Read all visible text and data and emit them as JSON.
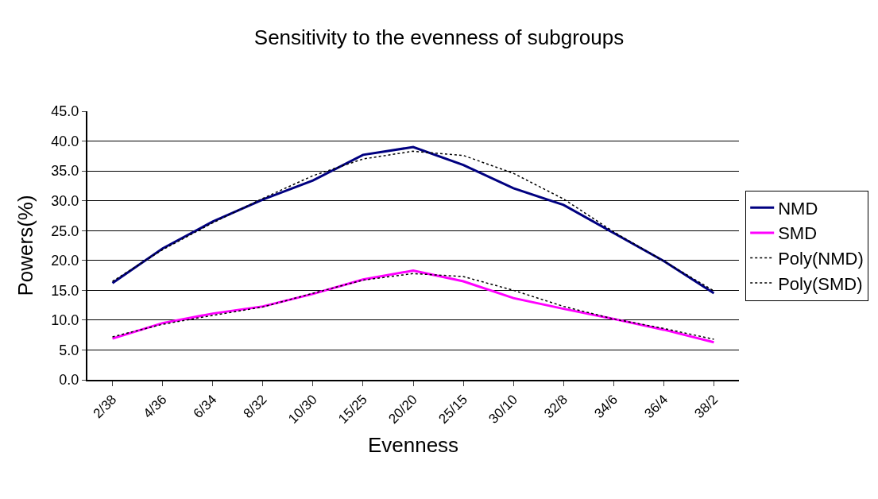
{
  "chart_data": {
    "type": "line",
    "title": "Sensitivity to the evenness of subgroups",
    "xlabel": "Evenness",
    "ylabel": "Powers(%)",
    "categories": [
      "2/38",
      "4/36",
      "6/34",
      "8/32",
      "10/30",
      "15/25",
      "20/20",
      "25/15",
      "30/10",
      "32/8",
      "34/6",
      "36/4",
      "38/2"
    ],
    "series": [
      {
        "name": "NMD",
        "color": "#000080",
        "line_style": "solid",
        "values": [
          16.2,
          22.0,
          26.5,
          30.2,
          33.4,
          37.7,
          39.0,
          36.0,
          32.1,
          29.3,
          24.6,
          19.9,
          14.5
        ]
      },
      {
        "name": "SMD",
        "color": "#ff00ff",
        "line_style": "solid",
        "values": [
          6.9,
          9.5,
          11.1,
          12.3,
          14.4,
          16.8,
          18.3,
          16.5,
          13.7,
          11.9,
          10.2,
          8.4,
          6.3
        ]
      },
      {
        "name": "Poly(NMD)",
        "color": "#000000",
        "line_style": "dotted",
        "values": [
          16.5,
          21.8,
          26.3,
          30.4,
          34.2,
          37.0,
          38.3,
          37.6,
          34.6,
          30.3,
          24.8,
          19.9,
          14.9
        ]
      },
      {
        "name": "Poly(SMD)",
        "color": "#000000",
        "line_style": "dotted",
        "values": [
          7.2,
          9.3,
          10.8,
          12.2,
          14.5,
          16.7,
          17.8,
          17.3,
          15.0,
          12.3,
          10.2,
          8.6,
          6.8
        ]
      }
    ],
    "ylim": [
      0,
      45
    ],
    "yticks": [
      {
        "value": 0,
        "label": "0.0"
      },
      {
        "value": 5,
        "label": "5.0"
      },
      {
        "value": 10,
        "label": "10.0"
      },
      {
        "value": 15,
        "label": "15.0"
      },
      {
        "value": 20,
        "label": "20.0"
      },
      {
        "value": 25,
        "label": "25.0"
      },
      {
        "value": 30,
        "label": "30.0"
      },
      {
        "value": 35,
        "label": "35.0"
      },
      {
        "value": 40,
        "label": "40.0"
      },
      {
        "value": 45,
        "label": "45.0"
      }
    ],
    "grid": "y",
    "legend": "right",
    "marker": "none"
  }
}
